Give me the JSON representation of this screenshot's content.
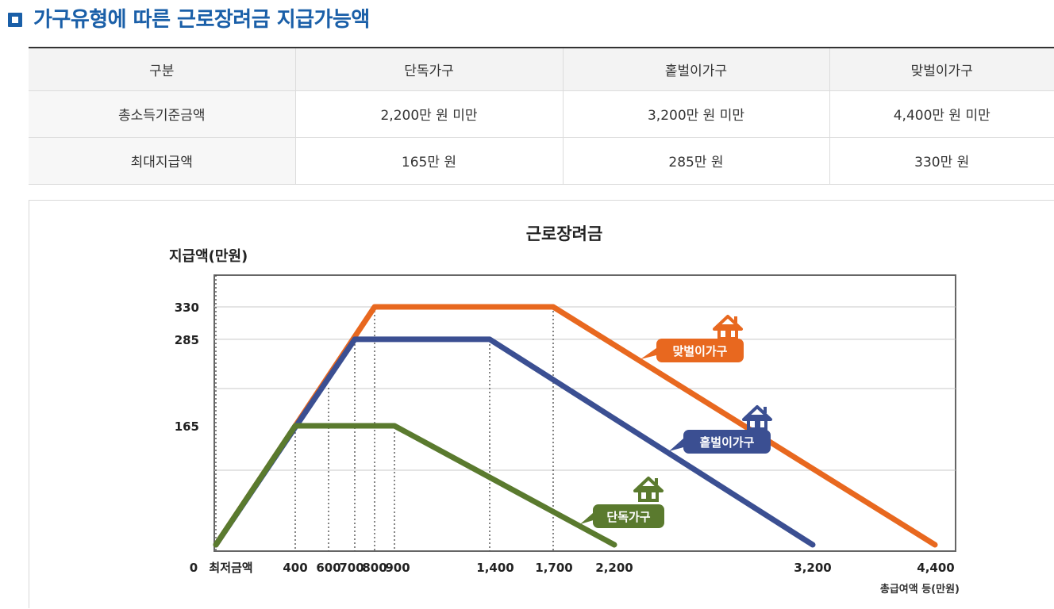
{
  "heading": "가구유형에 따른 근로장려금 지급가능액",
  "table": {
    "headers": [
      "구분",
      "단독가구",
      "홑벌이가구",
      "맞벌이가구"
    ],
    "rows": [
      [
        "총소득기준금액",
        "2,200만 원 미만",
        "3,200만 원 미만",
        "4,400만 원 미만"
      ],
      [
        "최대지급액",
        "165만 원",
        "285만 원",
        "330만 원"
      ]
    ]
  },
  "chart_data": {
    "type": "line",
    "title": "근로장려금",
    "ylabel": "지급액(만원)",
    "xlabel": "총급여액 등(만원)",
    "x_ticks": [
      "0",
      "최저금액",
      "400",
      "600",
      "700",
      "800",
      "900",
      "1,400",
      "1,700",
      "2,200",
      "3,200",
      "4,400"
    ],
    "y_ticks": [
      "330",
      "285",
      "165"
    ],
    "ylim": [
      0,
      370
    ],
    "grid": true,
    "series": [
      {
        "name": "맞벌이가구",
        "color": "#e8681f",
        "points": [
          [
            "최저금액",
            0
          ],
          [
            800,
            330
          ],
          [
            1700,
            330
          ],
          [
            4400,
            0
          ]
        ]
      },
      {
        "name": "홑벌이가구",
        "color": "#3b4f92",
        "points": [
          [
            "최저금액",
            0
          ],
          [
            700,
            285
          ],
          [
            1400,
            285
          ],
          [
            3200,
            0
          ]
        ]
      },
      {
        "name": "단독가구",
        "color": "#5a7a2e",
        "points": [
          [
            "최저금액",
            0
          ],
          [
            400,
            165
          ],
          [
            900,
            165
          ],
          [
            2200,
            0
          ]
        ]
      }
    ],
    "icons": [
      "house-icon",
      "house-icon",
      "house-icon"
    ]
  }
}
